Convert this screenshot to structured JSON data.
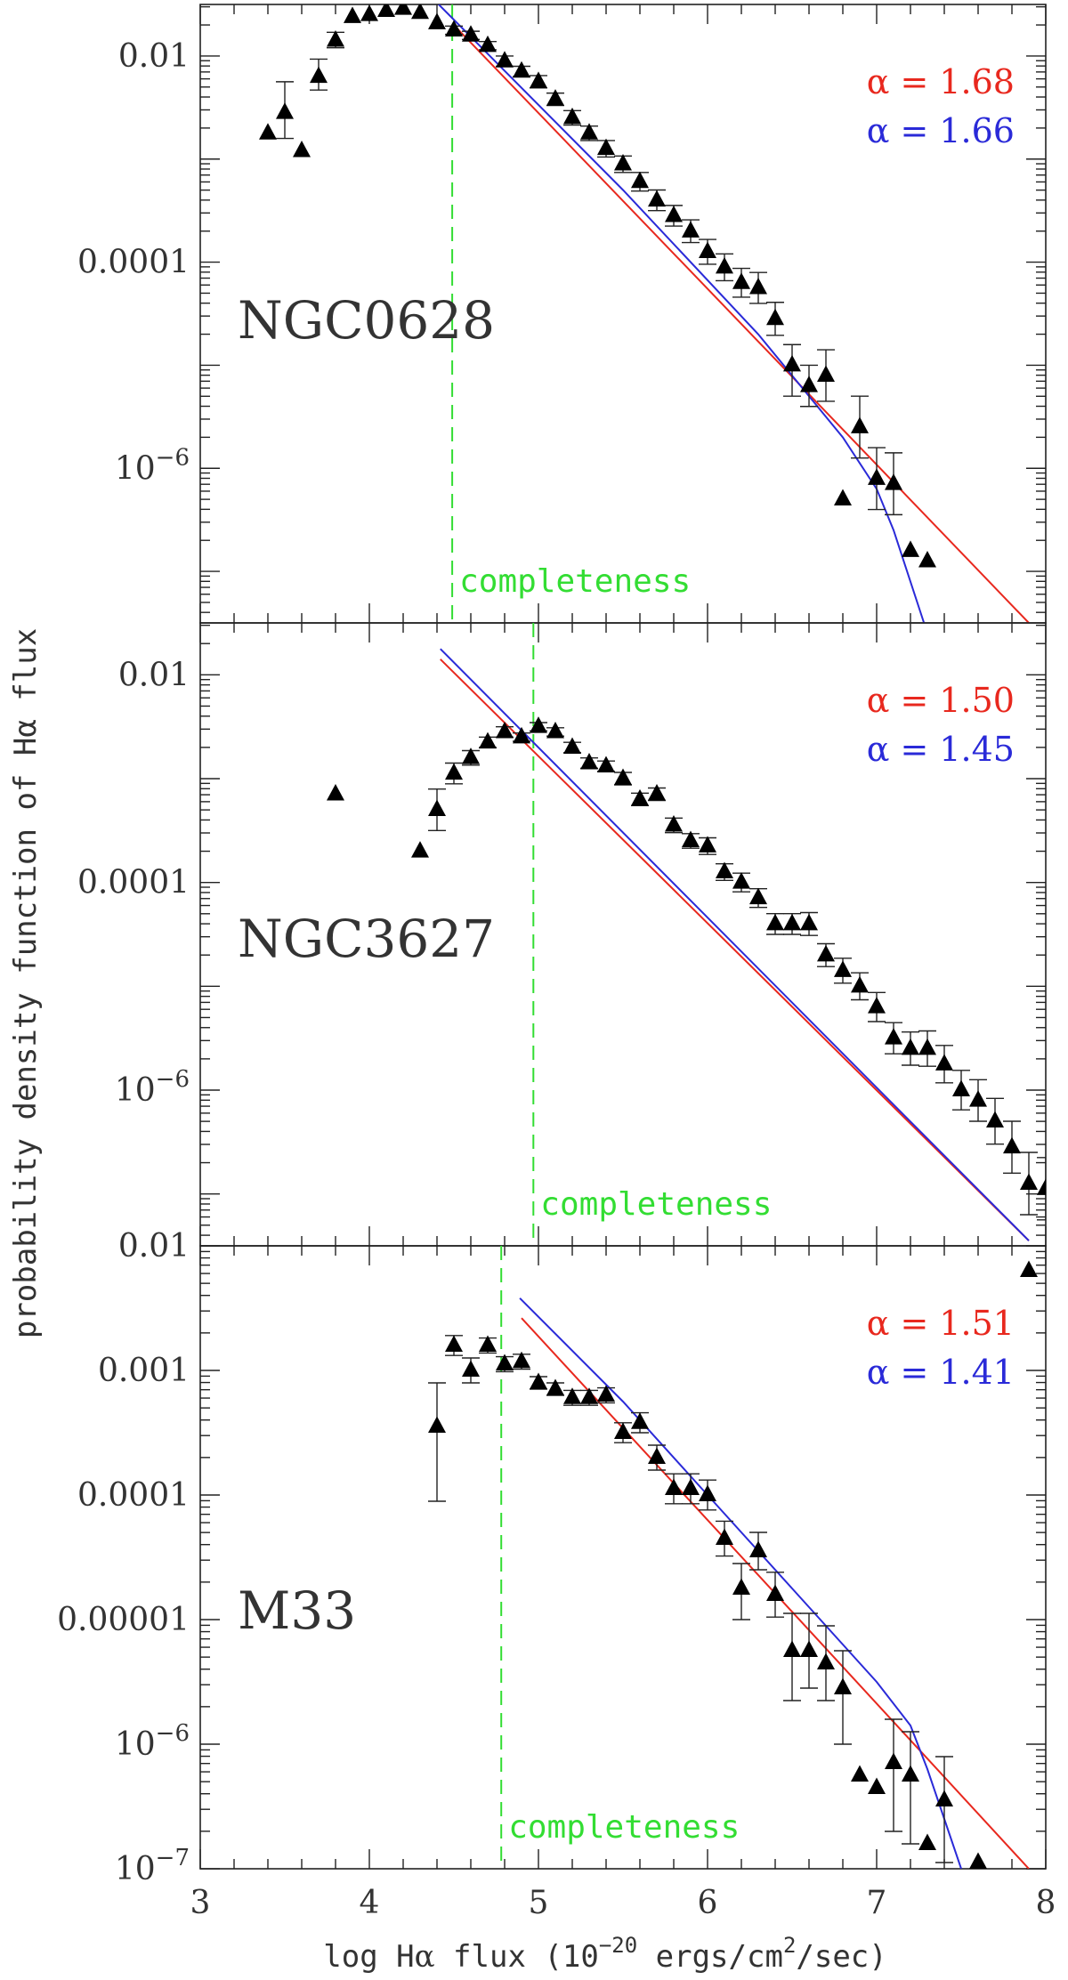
{
  "chart_data": {
    "xlabel_parts": [
      "log H",
      "α",
      " flux (10",
      "−20",
      " ergs/cm",
      "2",
      "/sec)"
    ],
    "ylabel": "probability density function of Hα flux",
    "xlim": [
      3,
      8
    ],
    "x_ticks": [
      "3",
      "4",
      "5",
      "6",
      "7",
      "8"
    ],
    "colors": {
      "red": "#e8281e",
      "blue": "#2a2ad8",
      "green": "#33dd33",
      "ink": "#222222"
    },
    "completeness_label": "completeness",
    "panels": [
      {
        "name": "NGC0628",
        "type": "scatter",
        "ylog": true,
        "ylim_log": [
          -7.5,
          -1.5
        ],
        "y_ticks": [
          {
            "log": -2,
            "label": "0.01"
          },
          {
            "log": -4,
            "label": "0.0001"
          },
          {
            "log": -6,
            "label": "10",
            "sup": "−6"
          }
        ],
        "completeness_x": 4.49,
        "fits": [
          {
            "name": "alpha-red",
            "color": "red",
            "alpha_label": "α  =  1.68",
            "points": [
              [
                4.5,
                -1.7
              ],
              [
                7.9,
                -7.5
              ]
            ]
          },
          {
            "name": "alpha-blue",
            "color": "blue",
            "alpha_label": "α  =  1.66",
            "points": [
              [
                4.41,
                -1.5
              ],
              [
                5.5,
                -3.3
              ],
              [
                6.3,
                -4.7
              ],
              [
                6.8,
                -5.7
              ],
              [
                7.0,
                -6.2
              ],
              [
                7.1,
                -6.6
              ],
              [
                7.2,
                -7.1
              ],
              [
                7.28,
                -7.5
              ]
            ]
          }
        ],
        "points": [
          [
            3.4,
            -2.75,
            0,
            0
          ],
          [
            3.5,
            -2.55,
            0.25,
            0.3
          ],
          [
            3.6,
            -2.92,
            0,
            0
          ],
          [
            3.7,
            -2.2,
            0.13,
            0.17
          ],
          [
            3.8,
            -1.85,
            0.07,
            0.08
          ],
          [
            3.9,
            -1.62,
            0,
            0
          ],
          [
            4.0,
            -1.6,
            0,
            0
          ],
          [
            4.1,
            -1.56,
            0,
            0
          ],
          [
            4.2,
            -1.54,
            0,
            0
          ],
          [
            4.3,
            -1.58,
            0,
            0
          ],
          [
            4.4,
            -1.68,
            0,
            0
          ],
          [
            4.5,
            -1.75,
            0.04,
            0.04
          ],
          [
            4.6,
            -1.8,
            0.04,
            0.04
          ],
          [
            4.7,
            -1.9,
            0.04,
            0.04
          ],
          [
            4.8,
            -2.05,
            0.05,
            0.05
          ],
          [
            4.9,
            -2.15,
            0.05,
            0.05
          ],
          [
            5.0,
            -2.25,
            0.06,
            0.06
          ],
          [
            5.1,
            -2.42,
            0.06,
            0.06
          ],
          [
            5.2,
            -2.6,
            0.07,
            0.07
          ],
          [
            5.3,
            -2.75,
            0.07,
            0.07
          ],
          [
            5.4,
            -2.9,
            0.08,
            0.08
          ],
          [
            5.5,
            -3.05,
            0.08,
            0.08
          ],
          [
            5.6,
            -3.22,
            0.09,
            0.09
          ],
          [
            5.7,
            -3.4,
            0.1,
            0.1
          ],
          [
            5.8,
            -3.55,
            0.1,
            0.1
          ],
          [
            5.9,
            -3.7,
            0.11,
            0.11
          ],
          [
            6.0,
            -3.9,
            0.12,
            0.12
          ],
          [
            6.1,
            -4.05,
            0.13,
            0.13
          ],
          [
            6.2,
            -4.2,
            0.14,
            0.14
          ],
          [
            6.3,
            -4.25,
            0.15,
            0.15
          ],
          [
            6.4,
            -4.55,
            0.16,
            0.16
          ],
          [
            6.5,
            -5.0,
            0.3,
            0.2
          ],
          [
            6.6,
            -5.2,
            0.2,
            0.2
          ],
          [
            6.7,
            -5.1,
            0.25,
            0.25
          ],
          [
            6.8,
            -6.3,
            0,
            0
          ],
          [
            6.9,
            -5.6,
            0.3,
            0.3
          ],
          [
            7.0,
            -6.1,
            0.3,
            0.3
          ],
          [
            7.1,
            -6.15,
            0.3,
            0.3
          ],
          [
            7.2,
            -6.8,
            0,
            0
          ],
          [
            7.3,
            -6.9,
            0,
            0
          ]
        ]
      },
      {
        "name": "NGC3627",
        "type": "scatter",
        "ylog": true,
        "ylim_log": [
          -7.5,
          -1.5
        ],
        "y_ticks": [
          {
            "log": -2,
            "label": "0.01"
          },
          {
            "log": -4,
            "label": "0.0001"
          },
          {
            "log": -6,
            "label": "10",
            "sup": "−6"
          }
        ],
        "completeness_x": 4.97,
        "fits": [
          {
            "name": "alpha-red",
            "color": "red",
            "alpha_label": "α  =  1.50",
            "points": [
              [
                4.42,
                -1.85
              ],
              [
                7.9,
                -7.45
              ]
            ]
          },
          {
            "name": "alpha-blue",
            "color": "blue",
            "alpha_label": "α  =  1.45",
            "points": [
              [
                4.42,
                -1.75
              ],
              [
                7.9,
                -7.45
              ]
            ]
          }
        ],
        "points": [
          [
            3.8,
            -3.15,
            0,
            0
          ],
          [
            4.3,
            -3.7,
            0,
            0
          ],
          [
            4.4,
            -3.3,
            0.2,
            0.2
          ],
          [
            4.5,
            -2.95,
            0.1,
            0.1
          ],
          [
            4.6,
            -2.8,
            0.07,
            0.07
          ],
          [
            4.7,
            -2.65,
            0.05,
            0.05
          ],
          [
            4.8,
            -2.55,
            0.05,
            0.05
          ],
          [
            4.9,
            -2.6,
            0.04,
            0.04
          ],
          [
            5.0,
            -2.5,
            0.04,
            0.04
          ],
          [
            5.1,
            -2.55,
            0.04,
            0.04
          ],
          [
            5.2,
            -2.7,
            0.05,
            0.05
          ],
          [
            5.3,
            -2.85,
            0.05,
            0.05
          ],
          [
            5.4,
            -2.88,
            0.05,
            0.05
          ],
          [
            5.5,
            -3.0,
            0.06,
            0.06
          ],
          [
            5.6,
            -3.2,
            0.06,
            0.06
          ],
          [
            5.7,
            -3.15,
            0.06,
            0.06
          ],
          [
            5.8,
            -3.45,
            0.07,
            0.07
          ],
          [
            5.9,
            -3.6,
            0.07,
            0.07
          ],
          [
            6.0,
            -3.65,
            0.08,
            0.08
          ],
          [
            6.1,
            -3.9,
            0.08,
            0.08
          ],
          [
            6.2,
            -4.0,
            0.09,
            0.09
          ],
          [
            6.3,
            -4.15,
            0.09,
            0.09
          ],
          [
            6.4,
            -4.4,
            0.1,
            0.1
          ],
          [
            6.5,
            -4.4,
            0.1,
            0.1
          ],
          [
            6.6,
            -4.4,
            0.11,
            0.11
          ],
          [
            6.7,
            -4.7,
            0.11,
            0.11
          ],
          [
            6.8,
            -4.85,
            0.12,
            0.12
          ],
          [
            6.9,
            -5.0,
            0.13,
            0.13
          ],
          [
            7.0,
            -5.2,
            0.14,
            0.14
          ],
          [
            7.1,
            -5.5,
            0.15,
            0.15
          ],
          [
            7.2,
            -5.6,
            0.16,
            0.16
          ],
          [
            7.3,
            -5.6,
            0.17,
            0.17
          ],
          [
            7.4,
            -5.75,
            0.18,
            0.18
          ],
          [
            7.5,
            -6.0,
            0.19,
            0.19
          ],
          [
            7.6,
            -6.1,
            0.2,
            0.2
          ],
          [
            7.7,
            -6.3,
            0.22,
            0.22
          ],
          [
            7.8,
            -6.55,
            0.25,
            0.25
          ],
          [
            7.9,
            -6.9,
            0.3,
            0.3
          ],
          [
            8.0,
            -6.95,
            0.3,
            0.3
          ]
        ]
      },
      {
        "name": "M33",
        "type": "scatter",
        "ylog": true,
        "ylim_log": [
          -7,
          -2
        ],
        "y_ticks": [
          {
            "log": -2,
            "label": "0.01"
          },
          {
            "log": -3,
            "label": "0.001"
          },
          {
            "log": -4,
            "label": "0.0001"
          },
          {
            "log": -5,
            "label": "0.00001"
          },
          {
            "log": -6,
            "label": "10",
            "sup": "−6"
          },
          {
            "log": -7,
            "label": "10",
            "sup": "−7"
          }
        ],
        "completeness_x": 4.78,
        "fits": [
          {
            "name": "alpha-red",
            "color": "red",
            "alpha_label": "α  =  1.51",
            "points": [
              [
                4.9,
                -2.58
              ],
              [
                7.9,
                -7.0
              ]
            ]
          },
          {
            "name": "alpha-blue",
            "color": "blue",
            "alpha_label": "α  =  1.41",
            "points": [
              [
                4.89,
                -2.42
              ],
              [
                5.5,
                -3.25
              ],
              [
                6.0,
                -4.0
              ],
              [
                6.5,
                -4.75
              ],
              [
                7.0,
                -5.5
              ],
              [
                7.2,
                -5.85
              ],
              [
                7.3,
                -6.2
              ],
              [
                7.4,
                -6.6
              ],
              [
                7.5,
                -7.0
              ]
            ]
          }
        ],
        "points": [
          [
            4.4,
            -3.45,
            0.6,
            0.35
          ],
          [
            4.5,
            -2.8,
            0.08,
            0.08
          ],
          [
            4.6,
            -3.0,
            0.1,
            0.1
          ],
          [
            4.7,
            -2.8,
            0.06,
            0.06
          ],
          [
            4.8,
            -2.95,
            0.06,
            0.06
          ],
          [
            4.9,
            -2.93,
            0.06,
            0.06
          ],
          [
            5.0,
            -3.1,
            0.05,
            0.05
          ],
          [
            5.1,
            -3.15,
            0.05,
            0.05
          ],
          [
            5.2,
            -3.22,
            0.06,
            0.06
          ],
          [
            5.3,
            -3.22,
            0.06,
            0.06
          ],
          [
            5.4,
            -3.2,
            0.06,
            0.06
          ],
          [
            5.5,
            -3.5,
            0.08,
            0.08
          ],
          [
            5.6,
            -3.42,
            0.08,
            0.08
          ],
          [
            5.7,
            -3.7,
            0.1,
            0.1
          ],
          [
            5.8,
            -3.95,
            0.12,
            0.12
          ],
          [
            5.9,
            -3.95,
            0.12,
            0.12
          ],
          [
            6.0,
            -4.0,
            0.12,
            0.12
          ],
          [
            6.1,
            -4.35,
            0.14,
            0.14
          ],
          [
            6.2,
            -4.75,
            0.25,
            0.2
          ],
          [
            6.3,
            -4.45,
            0.15,
            0.15
          ],
          [
            6.4,
            -4.8,
            0.18,
            0.18
          ],
          [
            6.5,
            -5.25,
            0.4,
            0.3
          ],
          [
            6.6,
            -5.25,
            0.3,
            0.3
          ],
          [
            6.7,
            -5.35,
            0.3,
            0.3
          ],
          [
            6.8,
            -5.55,
            0.45,
            0.3
          ],
          [
            6.9,
            -6.25,
            0,
            0
          ],
          [
            7.0,
            -6.35,
            0,
            0
          ],
          [
            7.1,
            -6.15,
            0.55,
            0.35
          ],
          [
            7.2,
            -6.25,
            0.55,
            0.35
          ],
          [
            7.3,
            -6.8,
            0,
            0
          ],
          [
            7.4,
            -6.45,
            0.5,
            0.35
          ],
          [
            7.6,
            -6.95,
            0,
            0
          ],
          [
            7.9,
            -2.2,
            0,
            0
          ]
        ]
      }
    ]
  }
}
